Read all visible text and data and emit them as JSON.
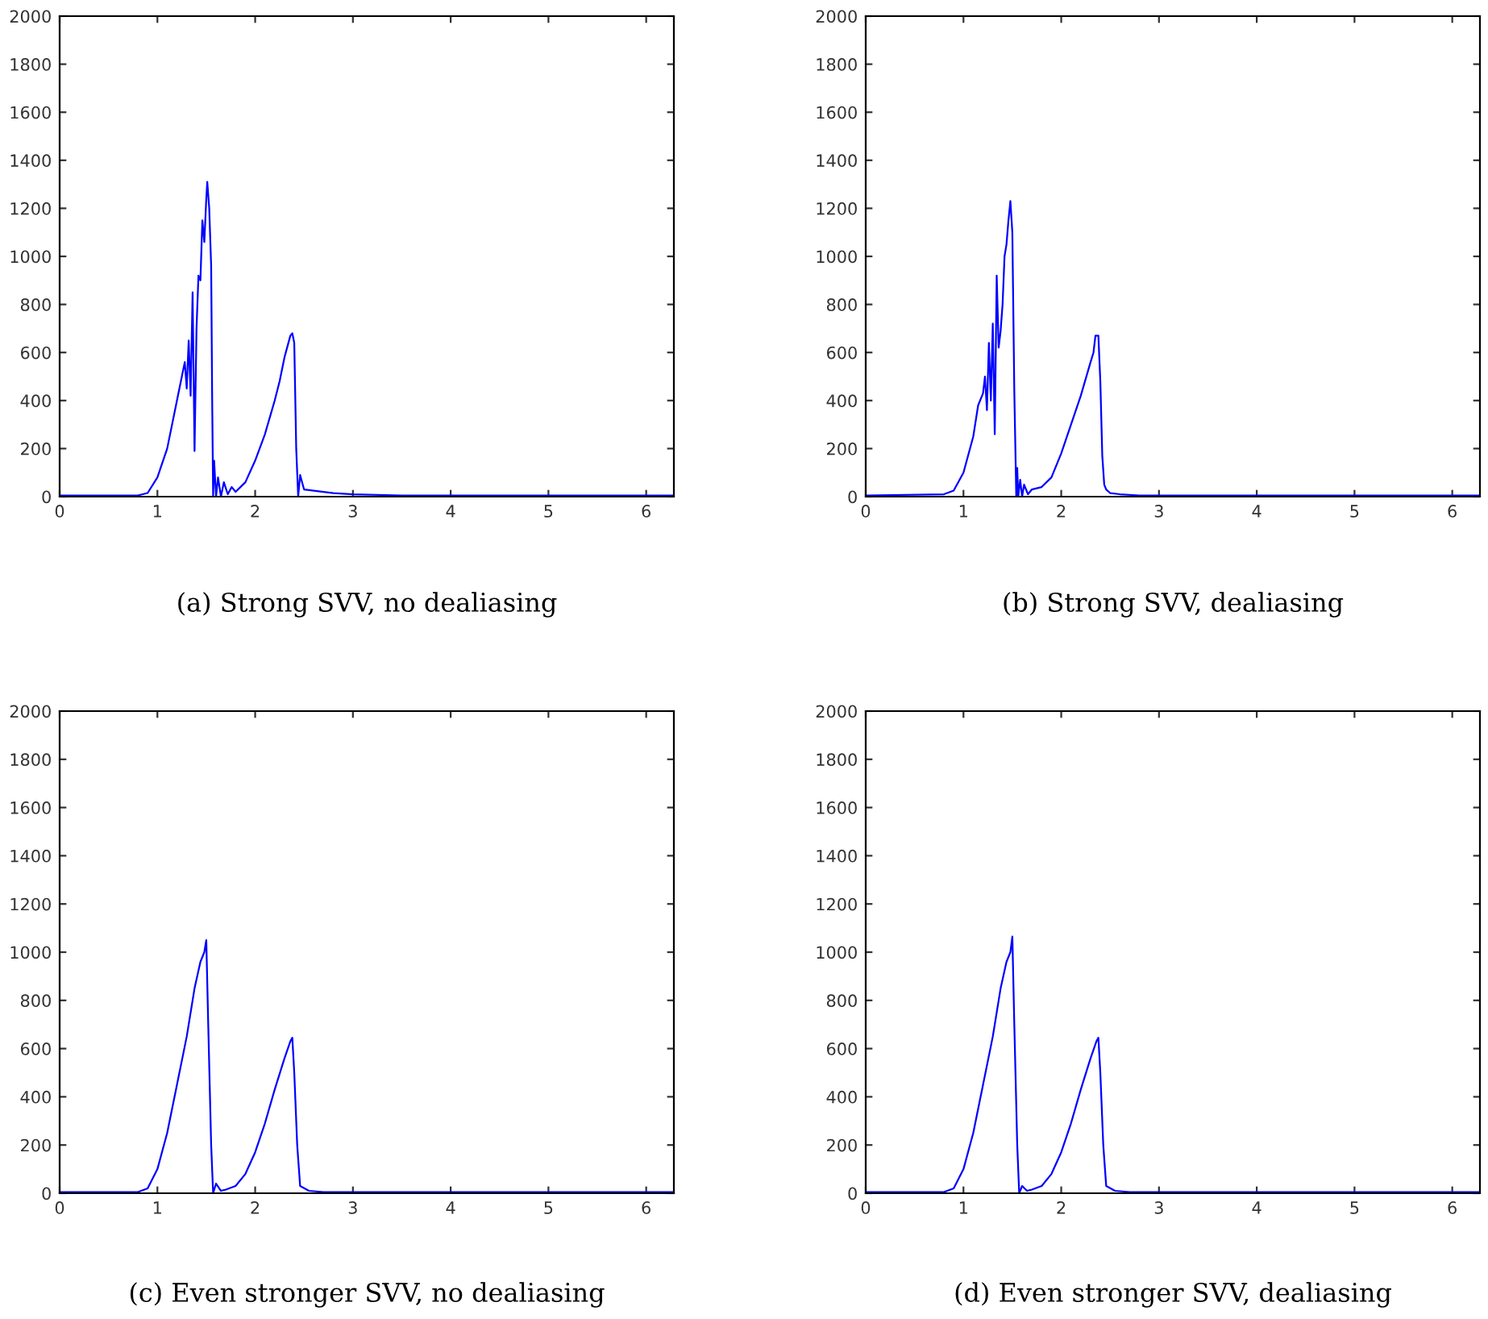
{
  "chart_data": [
    {
      "type": "line",
      "annotations": [
        "(a) Strong SVV, no dealiasing"
      ],
      "xlim": [
        0,
        6.2832
      ],
      "xticks": [
        0,
        1,
        2,
        3,
        4,
        5,
        6
      ],
      "ylim": [
        0,
        2000
      ],
      "yticks": [
        0,
        200,
        400,
        600,
        800,
        1000,
        1200,
        1400,
        1600,
        1800,
        2000
      ],
      "grid": false,
      "legend": false,
      "series": [
        {
          "color": "#0000ff",
          "x": [
            0,
            0.8,
            0.9,
            1.0,
            1.1,
            1.2,
            1.25,
            1.28,
            1.3,
            1.32,
            1.34,
            1.36,
            1.38,
            1.4,
            1.42,
            1.44,
            1.46,
            1.48,
            1.5,
            1.51,
            1.53,
            1.55,
            1.56,
            1.57,
            1.58,
            1.6,
            1.62,
            1.65,
            1.68,
            1.72,
            1.76,
            1.8,
            1.9,
            2.0,
            2.1,
            2.15,
            2.2,
            2.25,
            2.3,
            2.36,
            2.38,
            2.4,
            2.42,
            2.44,
            2.46,
            2.5,
            2.6,
            2.8,
            3.0,
            3.5,
            4.0,
            6.28
          ],
          "values": [
            5,
            5,
            15,
            80,
            200,
            400,
            500,
            560,
            450,
            650,
            420,
            850,
            190,
            700,
            920,
            900,
            1150,
            1060,
            1240,
            1310,
            1200,
            960,
            420,
            0,
            150,
            0,
            80,
            0,
            60,
            10,
            40,
            20,
            60,
            150,
            260,
            330,
            400,
            480,
            580,
            670,
            680,
            640,
            200,
            0,
            90,
            30,
            25,
            15,
            10,
            5,
            5,
            5
          ]
        }
      ]
    },
    {
      "type": "line",
      "annotations": [
        "(b) Strong SVV, dealiasing"
      ],
      "xlim": [
        0,
        6.2832
      ],
      "xticks": [
        0,
        1,
        2,
        3,
        4,
        5,
        6
      ],
      "ylim": [
        0,
        2000
      ],
      "yticks": [
        0,
        200,
        400,
        600,
        800,
        1000,
        1200,
        1400,
        1600,
        1800,
        2000
      ],
      "grid": false,
      "legend": false,
      "series": [
        {
          "color": "#0000ff",
          "x": [
            0,
            0.8,
            0.9,
            1.0,
            1.1,
            1.15,
            1.2,
            1.22,
            1.24,
            1.26,
            1.28,
            1.3,
            1.32,
            1.34,
            1.36,
            1.38,
            1.4,
            1.42,
            1.44,
            1.46,
            1.48,
            1.5,
            1.52,
            1.54,
            1.55,
            1.56,
            1.58,
            1.6,
            1.62,
            1.66,
            1.7,
            1.8,
            1.9,
            2.0,
            2.1,
            2.2,
            2.3,
            2.33,
            2.35,
            2.38,
            2.4,
            2.42,
            2.44,
            2.46,
            2.5,
            2.6,
            2.8,
            3.0,
            3.5,
            4.0,
            6.28
          ],
          "values": [
            5,
            10,
            25,
            100,
            250,
            380,
            430,
            500,
            360,
            640,
            400,
            720,
            260,
            920,
            620,
            690,
            800,
            1000,
            1050,
            1150,
            1230,
            1100,
            440,
            0,
            120,
            0,
            70,
            0,
            50,
            10,
            30,
            40,
            80,
            180,
            300,
            420,
            560,
            600,
            670,
            670,
            480,
            170,
            50,
            30,
            15,
            10,
            5,
            5,
            5,
            5,
            5
          ]
        }
      ]
    },
    {
      "type": "line",
      "annotations": [
        "(c) Even stronger SVV, no dealiasing"
      ],
      "xlim": [
        0,
        6.2832
      ],
      "xticks": [
        0,
        1,
        2,
        3,
        4,
        5,
        6
      ],
      "ylim": [
        0,
        2000
      ],
      "yticks": [
        0,
        200,
        400,
        600,
        800,
        1000,
        1200,
        1400,
        1600,
        1800,
        2000
      ],
      "grid": false,
      "legend": false,
      "series": [
        {
          "color": "#0000ff",
          "x": [
            0,
            0.8,
            0.9,
            1.0,
            1.1,
            1.2,
            1.3,
            1.38,
            1.44,
            1.48,
            1.5,
            1.52,
            1.55,
            1.57,
            1.6,
            1.65,
            1.7,
            1.8,
            1.9,
            2.0,
            2.1,
            2.2,
            2.3,
            2.36,
            2.38,
            2.4,
            2.43,
            2.46,
            2.55,
            2.7,
            6.28
          ],
          "values": [
            5,
            5,
            20,
            100,
            250,
            450,
            650,
            850,
            960,
            1000,
            1050,
            700,
            200,
            0,
            40,
            10,
            15,
            30,
            80,
            170,
            290,
            430,
            560,
            630,
            645,
            500,
            200,
            30,
            10,
            5,
            5
          ]
        }
      ]
    },
    {
      "type": "line",
      "annotations": [
        "(d) Even stronger SVV, dealiasing"
      ],
      "xlim": [
        0,
        6.2832
      ],
      "xticks": [
        0,
        1,
        2,
        3,
        4,
        5,
        6
      ],
      "ylim": [
        0,
        2000
      ],
      "yticks": [
        0,
        200,
        400,
        600,
        800,
        1000,
        1200,
        1400,
        1600,
        1800,
        2000
      ],
      "grid": false,
      "legend": false,
      "series": [
        {
          "color": "#0000ff",
          "x": [
            0,
            0.8,
            0.9,
            1.0,
            1.1,
            1.2,
            1.3,
            1.38,
            1.44,
            1.48,
            1.5,
            1.52,
            1.55,
            1.57,
            1.6,
            1.65,
            1.7,
            1.8,
            1.9,
            2.0,
            2.1,
            2.2,
            2.3,
            2.36,
            2.38,
            2.4,
            2.43,
            2.46,
            2.55,
            2.7,
            6.28
          ],
          "values": [
            5,
            5,
            20,
            100,
            250,
            450,
            650,
            850,
            960,
            1000,
            1065,
            700,
            200,
            0,
            30,
            10,
            15,
            30,
            80,
            170,
            290,
            430,
            560,
            630,
            645,
            500,
            200,
            30,
            10,
            5,
            5
          ]
        }
      ]
    }
  ]
}
